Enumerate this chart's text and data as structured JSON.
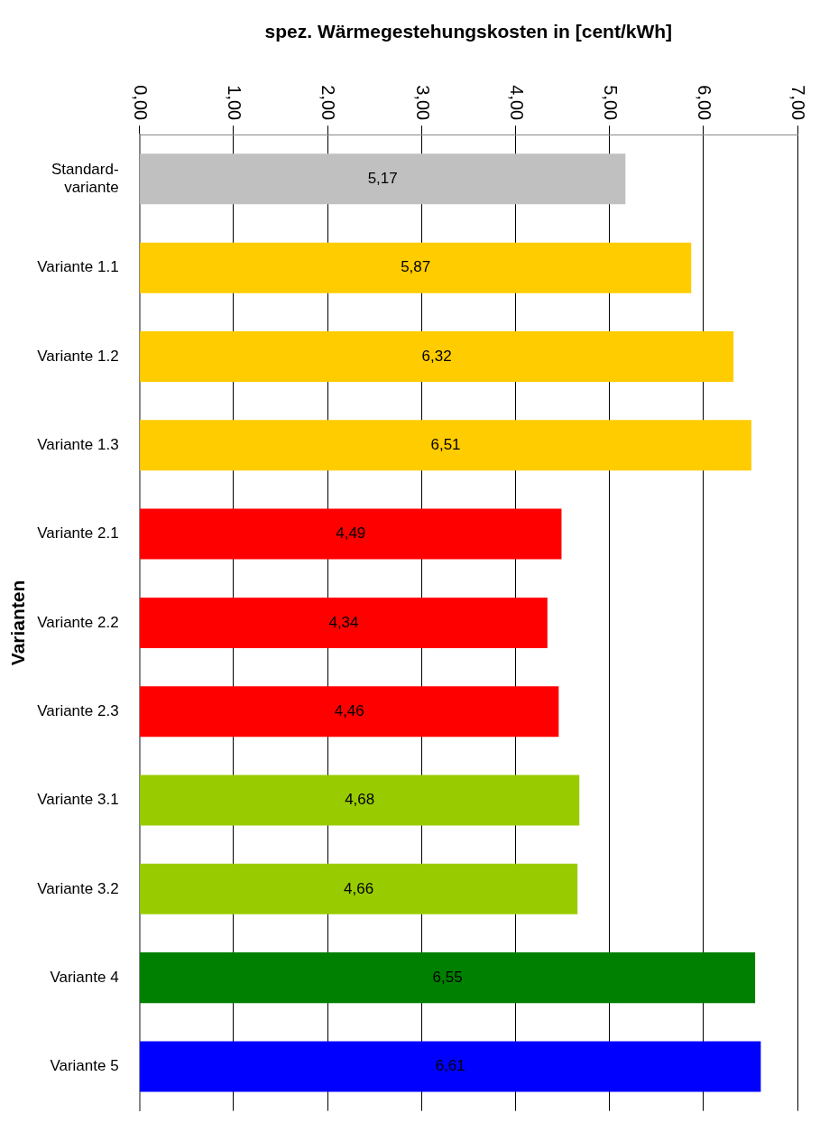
{
  "chart_data": {
    "type": "bar",
    "orientation": "horizontal",
    "xlabel": "spez. Wärmegestehungskosten in [cent/kWh]",
    "ylabel": "Varianten",
    "categories": [
      "Standard-variante",
      "Variante 1.1",
      "Variante 1.2",
      "Variante 1.3",
      "Variante 2.1",
      "Variante 2.2",
      "Variante 2.3",
      "Variante 3.1",
      "Variante 3.2",
      "Variante 4",
      "Variante 5"
    ],
    "values": [
      5.17,
      5.87,
      6.32,
      6.51,
      4.49,
      4.34,
      4.46,
      4.68,
      4.66,
      6.55,
      6.61
    ],
    "colors": [
      "#c0c0c0",
      "#ffcc00",
      "#ffcc00",
      "#ffcc00",
      "#ff0000",
      "#ff0000",
      "#ff0000",
      "#99cc00",
      "#99cc00",
      "#008000",
      "#0000ff"
    ],
    "value_labels": [
      "5,17",
      "5,87",
      "6,32",
      "6,51",
      "4,49",
      "4,34",
      "4,46",
      "4,68",
      "4,66",
      "6,55",
      "6,61"
    ],
    "xlim": [
      0,
      7
    ],
    "xticks": [
      {
        "value": 0,
        "label": "0,00"
      },
      {
        "value": 1,
        "label": "1,00"
      },
      {
        "value": 2,
        "label": "2,00"
      },
      {
        "value": 3,
        "label": "3,00"
      },
      {
        "value": 4,
        "label": "4,00"
      },
      {
        "value": 5,
        "label": "5,00"
      },
      {
        "value": 6,
        "label": "6,00"
      },
      {
        "value": 7,
        "label": "7,00"
      }
    ],
    "grid": "x",
    "legend": false
  }
}
